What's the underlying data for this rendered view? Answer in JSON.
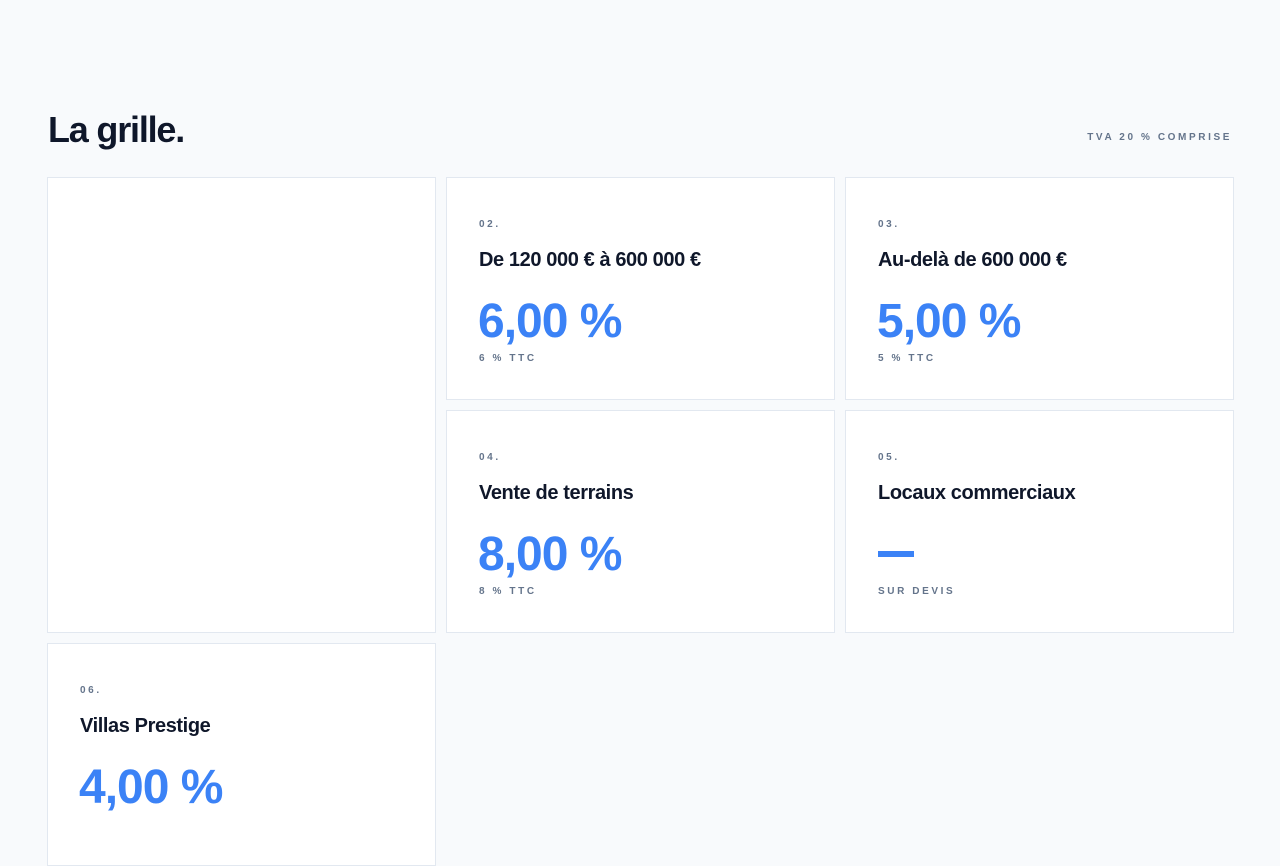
{
  "header": {
    "title": "La grille.",
    "vat_note": "TVA 20 % COMPRISE"
  },
  "cards": [
    {
      "index": "",
      "title": "",
      "rate": "",
      "sub": ""
    },
    {
      "index": "02.",
      "title": "De 120 000 € à 600 000 €",
      "rate": "6,00 %",
      "sub": "6 % TTC"
    },
    {
      "index": "03.",
      "title": "Au-delà de 600 000 €",
      "rate": "5,00 %",
      "sub": "5 % TTC"
    },
    {
      "index": "04.",
      "title": "Vente de terrains",
      "rate": "8,00 %",
      "sub": "8 % TTC"
    },
    {
      "index": "05.",
      "title": "Locaux commerciaux",
      "rate": "",
      "sub": "SUR DEVIS"
    },
    {
      "index": "06.",
      "title": "Villas Prestige",
      "rate": "4,00 %",
      "sub": ""
    }
  ],
  "colors": {
    "accent": "#3b82f6",
    "text": "#0f172a",
    "muted": "#64748b",
    "border": "#e2e8f0",
    "background": "#f8fafc"
  }
}
